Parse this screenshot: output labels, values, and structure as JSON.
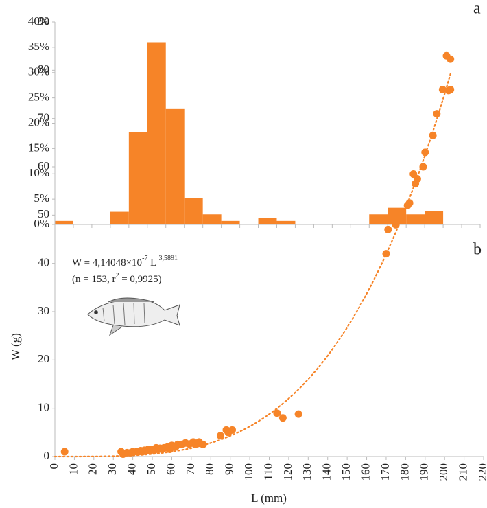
{
  "chart_data": [
    {
      "type": "histogram",
      "label": "a",
      "color": "#f68428",
      "bins": [
        0,
        10,
        20,
        30,
        40,
        50,
        60,
        70,
        80,
        90,
        100,
        110,
        120,
        130,
        140,
        150,
        160,
        170,
        180,
        190,
        200,
        210,
        220,
        230
      ],
      "values": [
        0.7,
        0,
        0,
        2.5,
        18.3,
        36,
        22.8,
        5.2,
        2,
        0.7,
        0,
        1.3,
        0.7,
        0,
        0,
        0,
        0,
        2,
        3.3,
        2,
        2.6,
        0,
        0
      ],
      "xlim": [
        0,
        230
      ],
      "ylim": [
        0,
        40
      ],
      "yticks": [
        {
          "value": 0,
          "label": "0%"
        },
        {
          "value": 5,
          "label": "5%"
        },
        {
          "value": 10,
          "label": "10%"
        },
        {
          "value": 15,
          "label": "15%"
        },
        {
          "value": 20,
          "label": "20%"
        },
        {
          "value": 25,
          "label": "25%"
        },
        {
          "value": 30,
          "label": "30%"
        },
        {
          "value": 35,
          "label": "35%"
        },
        {
          "value": 40,
          "label": "40%"
        }
      ]
    },
    {
      "type": "scatter",
      "label": "b",
      "color": "#f68428",
      "xlabel": "L (mm)",
      "ylabel": "W (g)",
      "equation": [
        "W = 4,14048×10",
        "-7",
        " L ",
        "3,5891"
      ],
      "stats": [
        "(n = 153, r",
        "2",
        " = 0,9925)"
      ],
      "fit": {
        "coefficient": 4.14048e-07,
        "exponent": 3.5891
      },
      "x": [
        5,
        34,
        35,
        37,
        39,
        40,
        42,
        43,
        44,
        45,
        46,
        47,
        48,
        49,
        50,
        51,
        52,
        53,
        54,
        55,
        56,
        57,
        58,
        59,
        60,
        61,
        62,
        63,
        65,
        67,
        69,
        71,
        72,
        74,
        76,
        85,
        88,
        89,
        91,
        114,
        117,
        125,
        170,
        171,
        175,
        181,
        182,
        184,
        185,
        186,
        189,
        190,
        194,
        196,
        199,
        201,
        202,
        203,
        203
      ],
      "values": [
        1,
        1,
        0.5,
        0.8,
        0.8,
        1,
        1,
        1,
        1.2,
        1,
        1.3,
        1.2,
        1.5,
        1.3,
        1.5,
        1.3,
        1.8,
        1.5,
        1.7,
        1.5,
        1.8,
        1.8,
        2,
        1.5,
        2.3,
        2,
        2,
        2.5,
        2.5,
        2.8,
        2.6,
        3,
        2.5,
        3,
        2.5,
        4.3,
        5.5,
        5,
        5.5,
        9,
        8,
        8.8,
        42,
        47,
        48,
        52,
        52.5,
        58.5,
        56.5,
        57.5,
        60,
        63,
        66.5,
        71,
        76,
        83,
        75.8,
        82.3,
        76
      ],
      "xlim": [
        0,
        220
      ],
      "xticks": [
        0,
        10,
        20,
        30,
        40,
        50,
        60,
        70,
        80,
        90,
        100,
        110,
        120,
        130,
        140,
        150,
        160,
        170,
        180,
        190,
        200,
        210,
        220
      ],
      "ylim": [
        0,
        90
      ],
      "yticks": [
        0,
        10,
        20,
        30,
        40,
        50,
        60,
        70,
        80,
        90
      ]
    }
  ]
}
